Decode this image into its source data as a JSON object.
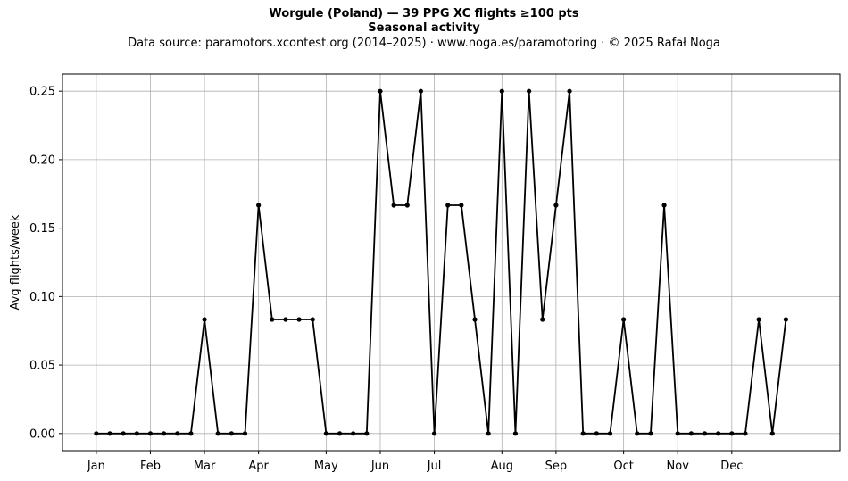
{
  "chart_data": {
    "type": "line",
    "title": "Worgule (Poland)  —  39 PPG XC flights ≥100 pts",
    "title_line2": "Seasonal activity",
    "subtitle": "Data source: paramotors.xcontest.org (2014–2025)  ·  www.noga.es/paramotoring  ·  © 2025 Rafał Noga",
    "xlabel": "",
    "ylabel": "Avg flights/week",
    "xlim": [
      -2.5,
      55
    ],
    "ylim": [
      -0.0125,
      0.2625
    ],
    "grid": true,
    "x_ticks": [
      {
        "label": "Jan",
        "x": 0
      },
      {
        "label": "Feb",
        "x": 4
      },
      {
        "label": "Mar",
        "x": 8
      },
      {
        "label": "Apr",
        "x": 12
      },
      {
        "label": "May",
        "x": 17
      },
      {
        "label": "Jun",
        "x": 21
      },
      {
        "label": "Jul",
        "x": 25
      },
      {
        "label": "Aug",
        "x": 30
      },
      {
        "label": "Sep",
        "x": 34
      },
      {
        "label": "Oct",
        "x": 39
      },
      {
        "label": "Nov",
        "x": 43
      },
      {
        "label": "Dec",
        "x": 47
      }
    ],
    "y_ticks": [
      "0.00",
      "0.05",
      "0.10",
      "0.15",
      "0.20",
      "0.25"
    ],
    "y_tick_values": [
      0,
      0.05,
      0.1,
      0.15,
      0.2,
      0.25
    ],
    "series": [
      {
        "name": "",
        "color": "#000000",
        "x": [
          0,
          1,
          2,
          3,
          4,
          5,
          6,
          7,
          8,
          9,
          10,
          11,
          12,
          13,
          14,
          15,
          16,
          17,
          18,
          19,
          20,
          21,
          22,
          23,
          24,
          25,
          26,
          27,
          28,
          29,
          30,
          31,
          32,
          33,
          34,
          35,
          36,
          37,
          38,
          39,
          40,
          41,
          42,
          43,
          44,
          45,
          46,
          47,
          48,
          49,
          50,
          51
        ],
        "values": [
          0,
          0,
          0,
          0,
          0,
          0,
          0,
          0,
          0.0833,
          0,
          0,
          0,
          0.1667,
          0.0833,
          0.0833,
          0.0833,
          0.0833,
          0,
          0,
          0,
          0,
          0.25,
          0.1667,
          0.1667,
          0.25,
          0,
          0.1667,
          0.1667,
          0.0833,
          0,
          0.25,
          0,
          0.25,
          0.0833,
          0.1667,
          0.25,
          0,
          0,
          0,
          0.0833,
          0,
          0,
          0.1667,
          0,
          0,
          0,
          0,
          0,
          0,
          0.0833,
          0,
          0.0833
        ]
      }
    ]
  }
}
